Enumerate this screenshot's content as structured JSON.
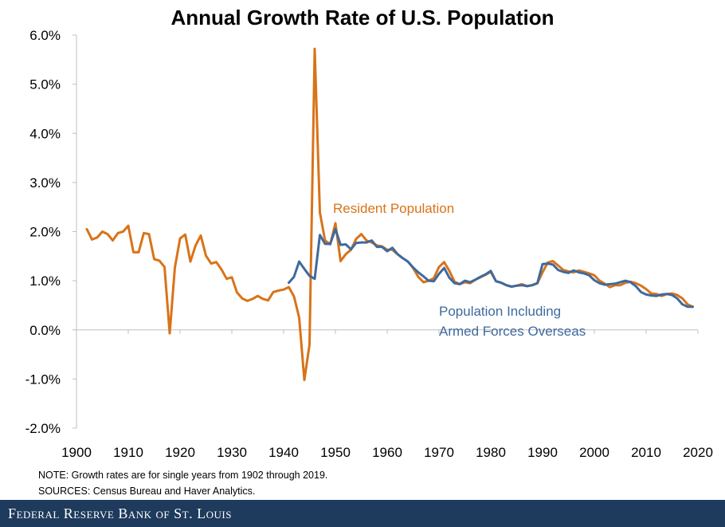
{
  "chart_data": {
    "type": "line",
    "title": "Annual Growth Rate of U.S. Population",
    "xlabel": "",
    "ylabel": "",
    "xlim": [
      1900,
      2020
    ],
    "ylim": [
      -2.0,
      6.0
    ],
    "x_ticks": [
      1900,
      1910,
      1920,
      1930,
      1940,
      1950,
      1960,
      1970,
      1980,
      1990,
      2000,
      2010,
      2020
    ],
    "y_ticks": [
      -2.0,
      -1.0,
      0.0,
      1.0,
      2.0,
      3.0,
      4.0,
      5.0,
      6.0
    ],
    "x_tick_labels": [
      "1900",
      "1910",
      "1920",
      "1930",
      "1940",
      "1950",
      "1960",
      "1970",
      "1980",
      "1990",
      "2000",
      "2010",
      "2020"
    ],
    "y_tick_labels": [
      "-2.0%",
      "-1.0%",
      "0.0%",
      "1.0%",
      "2.0%",
      "3.0%",
      "4.0%",
      "5.0%",
      "6.0%"
    ],
    "grid": false,
    "series": [
      {
        "name": "Resident Population",
        "color": "#d97318",
        "x": [
          1902,
          1903,
          1904,
          1905,
          1906,
          1907,
          1908,
          1909,
          1910,
          1911,
          1912,
          1913,
          1914,
          1915,
          1916,
          1917,
          1918,
          1919,
          1920,
          1921,
          1922,
          1923,
          1924,
          1925,
          1926,
          1927,
          1928,
          1929,
          1930,
          1931,
          1932,
          1933,
          1934,
          1935,
          1936,
          1937,
          1938,
          1939,
          1940,
          1941,
          1942,
          1943,
          1944,
          1945,
          1946,
          1947,
          1948,
          1949,
          1950,
          1951,
          1952,
          1953,
          1954,
          1955,
          1956,
          1957,
          1958,
          1959,
          1960,
          1961,
          1962,
          1963,
          1964,
          1965,
          1966,
          1967,
          1968,
          1969,
          1970,
          1971,
          1972,
          1973,
          1974,
          1975,
          1976,
          1977,
          1978,
          1979,
          1980,
          1981,
          1982,
          1983,
          1984,
          1985,
          1986,
          1987,
          1988,
          1989,
          1990,
          1991,
          1992,
          1993,
          1994,
          1995,
          1996,
          1997,
          1998,
          1999,
          2000,
          2001,
          2002,
          2003,
          2004,
          2005,
          2006,
          2007,
          2008,
          2009,
          2010,
          2011,
          2012,
          2013,
          2014,
          2015,
          2016,
          2017,
          2018,
          2019
        ],
        "values": [
          2.05,
          1.84,
          1.88,
          2.0,
          1.95,
          1.82,
          1.97,
          2.0,
          2.12,
          1.58,
          1.58,
          1.97,
          1.95,
          1.44,
          1.41,
          1.28,
          -0.07,
          1.27,
          1.86,
          1.94,
          1.39,
          1.72,
          1.92,
          1.51,
          1.35,
          1.38,
          1.23,
          1.04,
          1.07,
          0.76,
          0.64,
          0.59,
          0.63,
          0.69,
          0.63,
          0.6,
          0.77,
          0.8,
          0.82,
          0.87,
          0.68,
          0.25,
          -1.02,
          -0.3,
          5.72,
          2.39,
          1.82,
          1.74,
          2.17,
          1.4,
          1.54,
          1.63,
          1.85,
          1.95,
          1.82,
          1.78,
          1.72,
          1.7,
          1.63,
          1.63,
          1.54,
          1.46,
          1.39,
          1.26,
          1.08,
          0.97,
          1.0,
          1.05,
          1.28,
          1.38,
          1.2,
          0.98,
          0.93,
          0.97,
          0.95,
          1.02,
          1.07,
          1.12,
          1.18,
          0.99,
          0.96,
          0.91,
          0.88,
          0.9,
          0.93,
          0.89,
          0.91,
          0.95,
          1.17,
          1.37,
          1.4,
          1.31,
          1.22,
          1.19,
          1.17,
          1.21,
          1.18,
          1.15,
          1.11,
          1.0,
          0.94,
          0.87,
          0.91,
          0.91,
          0.96,
          0.98,
          0.95,
          0.9,
          0.83,
          0.74,
          0.73,
          0.69,
          0.73,
          0.74,
          0.71,
          0.64,
          0.52,
          0.47
        ]
      },
      {
        "name": "Population Including Armed Forces Overseas",
        "color": "#3e6a9e",
        "x": [
          1941,
          1942,
          1943,
          1944,
          1945,
          1946,
          1947,
          1948,
          1949,
          1950,
          1951,
          1952,
          1953,
          1954,
          1955,
          1956,
          1957,
          1958,
          1959,
          1960,
          1961,
          1962,
          1963,
          1964,
          1965,
          1966,
          1967,
          1968,
          1969,
          1970,
          1971,
          1972,
          1973,
          1974,
          1975,
          1976,
          1977,
          1978,
          1979,
          1980,
          1981,
          1982,
          1983,
          1984,
          1985,
          1986,
          1987,
          1988,
          1989,
          1990,
          1991,
          1992,
          1993,
          1994,
          1995,
          1996,
          1997,
          1998,
          1999,
          2000,
          2001,
          2002,
          2003,
          2004,
          2005,
          2006,
          2007,
          2008,
          2009,
          2010,
          2011,
          2012,
          2013,
          2014,
          2015,
          2016,
          2017,
          2018,
          2019
        ],
        "values": [
          0.96,
          1.08,
          1.39,
          1.24,
          1.1,
          1.04,
          1.93,
          1.75,
          1.75,
          2.05,
          1.73,
          1.74,
          1.64,
          1.77,
          1.78,
          1.78,
          1.82,
          1.69,
          1.69,
          1.6,
          1.67,
          1.54,
          1.46,
          1.39,
          1.27,
          1.17,
          1.09,
          1.0,
          0.99,
          1.14,
          1.26,
          1.06,
          0.95,
          0.93,
          1.0,
          0.97,
          1.02,
          1.08,
          1.13,
          1.2,
          0.99,
          0.96,
          0.91,
          0.88,
          0.9,
          0.91,
          0.89,
          0.91,
          0.95,
          1.34,
          1.35,
          1.33,
          1.22,
          1.18,
          1.16,
          1.21,
          1.17,
          1.15,
          1.11,
          1.01,
          0.95,
          0.92,
          0.93,
          0.94,
          0.97,
          1.0,
          0.97,
          0.89,
          0.77,
          0.72,
          0.7,
          0.69,
          0.72,
          0.73,
          0.71,
          0.64,
          0.52,
          0.47,
          0.47
        ]
      }
    ],
    "annotations": [
      {
        "text": "Resident Population",
        "color": "#d97318"
      },
      {
        "text": "Population Including",
        "color": "#3e6a9e"
      },
      {
        "text": "Armed Forces Overseas",
        "color": "#3e6a9e"
      }
    ]
  },
  "notes": {
    "note": "NOTE: Growth rates are for single years from 1902 through 2019.",
    "sources": "SOURCES: Census Bureau and Haver Analytics."
  },
  "footer": {
    "brand": "Federal Reserve Bank of St. Louis"
  }
}
